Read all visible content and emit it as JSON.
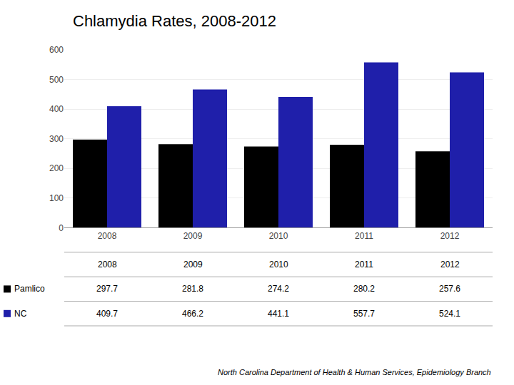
{
  "chart_data": {
    "type": "bar",
    "title": "Chlamydia Rates, 2008-2012",
    "subtitle": "North Carolina Department of Health & Human Services, Epidemiology Branch",
    "categories": [
      "2008",
      "2009",
      "2010",
      "2011",
      "2012"
    ],
    "series": [
      {
        "name": "Pamlico",
        "color": "#000000",
        "values": [
          297.7,
          281.8,
          274.2,
          280.2,
          257.6
        ]
      },
      {
        "name": "NC",
        "color": "#1f1faa",
        "values": [
          409.7,
          466.2,
          441.1,
          557.7,
          524.1
        ]
      }
    ],
    "ylim": [
      0,
      600
    ],
    "yticks": [
      0,
      100,
      200,
      300,
      400,
      500,
      600
    ],
    "grid": true
  }
}
